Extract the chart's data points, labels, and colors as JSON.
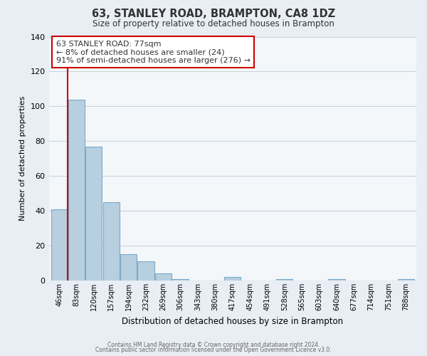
{
  "title": "63, STANLEY ROAD, BRAMPTON, CA8 1DZ",
  "subtitle": "Size of property relative to detached houses in Brampton",
  "xlabel": "Distribution of detached houses by size in Brampton",
  "ylabel": "Number of detached properties",
  "bar_color": "#b8cfe0",
  "bar_edge_color": "#7aaac8",
  "marker_color": "#cc0000",
  "bin_labels": [
    "46sqm",
    "83sqm",
    "120sqm",
    "157sqm",
    "194sqm",
    "232sqm",
    "269sqm",
    "306sqm",
    "343sqm",
    "380sqm",
    "417sqm",
    "454sqm",
    "491sqm",
    "528sqm",
    "565sqm",
    "603sqm",
    "640sqm",
    "677sqm",
    "714sqm",
    "751sqm",
    "788sqm"
  ],
  "bar_heights": [
    41,
    104,
    77,
    45,
    15,
    11,
    4,
    1,
    0,
    0,
    2,
    0,
    0,
    1,
    0,
    0,
    1,
    0,
    0,
    0,
    1
  ],
  "ylim": [
    0,
    140
  ],
  "yticks": [
    0,
    20,
    40,
    60,
    80,
    100,
    120,
    140
  ],
  "annotation_line1": "63 STANLEY ROAD: 77sqm",
  "annotation_line2": "← 8% of detached houses are smaller (24)",
  "annotation_line3": "91% of semi-detached houses are larger (276) →",
  "footer_line1": "Contains HM Land Registry data © Crown copyright and database right 2024.",
  "footer_line2": "Contains public sector information licensed under the Open Government Licence v3.0.",
  "background_color": "#e8eef4",
  "plot_background_color": "#f4f7fa",
  "grid_color": "#c8d4e0",
  "title_color": "#333333",
  "text_color": "#333333"
}
